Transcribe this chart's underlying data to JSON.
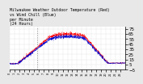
{
  "title": "Milwaukee Weather Outdoor Temperature (Red)\nvs Wind Chill (Blue)\nper Minute\n(24 Hours)",
  "bg_color": "#e8e8e8",
  "plot_bg_color": "#ffffff",
  "red_color": "#ff0000",
  "blue_color": "#0000cc",
  "grid_color": "#cccccc",
  "ylim": [
    -5,
    80
  ],
  "yticks": [
    -5,
    5,
    15,
    25,
    35,
    45,
    55,
    65,
    75
  ],
  "ylabel_fontsize": 4,
  "title_fontsize": 3.5,
  "vline_x": 340,
  "num_points": 1440
}
